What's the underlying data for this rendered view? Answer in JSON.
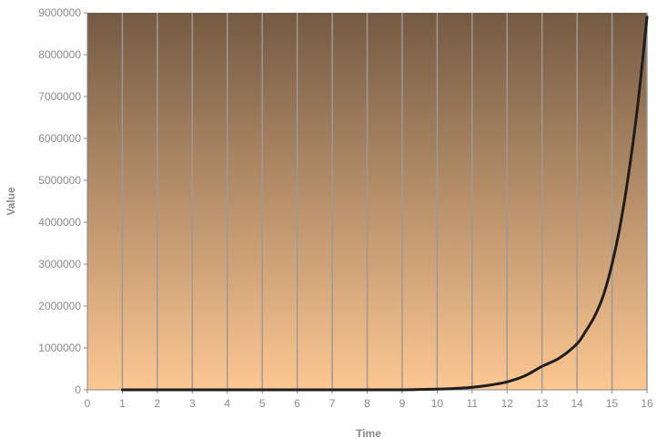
{
  "chart_data": {
    "type": "line",
    "title": "",
    "xlabel": "Time",
    "ylabel": "Value",
    "xlim": [
      0,
      16
    ],
    "ylim": [
      0,
      9000000
    ],
    "x_ticks": [
      "0",
      "1",
      "2",
      "3",
      "4",
      "5",
      "6",
      "7",
      "8",
      "9",
      "10",
      "11",
      "12",
      "13",
      "14",
      "15",
      "16"
    ],
    "y_ticks": [
      "0",
      "1000000",
      "2000000",
      "3000000",
      "4000000",
      "5000000",
      "6000000",
      "7000000",
      "8000000",
      "9000000"
    ],
    "grid": "vertical",
    "legend": "none",
    "series": [
      {
        "x": [
          1,
          2,
          3,
          4,
          5,
          6,
          7,
          8,
          9,
          9.5,
          10,
          10.5,
          11,
          11.5,
          12,
          12.5,
          13,
          13.5,
          14,
          14.25,
          14.5,
          14.75,
          15,
          15.25,
          15.5,
          15.75,
          16
        ],
        "values": [
          0,
          0,
          0,
          0,
          0,
          0,
          0,
          0,
          0,
          8000,
          16000,
          32000,
          60000,
          110000,
          190000,
          330000,
          560000,
          760000,
          1100000,
          1400000,
          1750000,
          2250000,
          3000000,
          4000000,
          5300000,
          6900000,
          8900000
        ]
      }
    ],
    "colors": {
      "plot_top": "#745a43",
      "plot_bottom": "#fcc792",
      "gridline": "#9a9a9a",
      "line": "#1e1e1e",
      "axis": "#888888",
      "text": "#8a8a8a"
    }
  }
}
